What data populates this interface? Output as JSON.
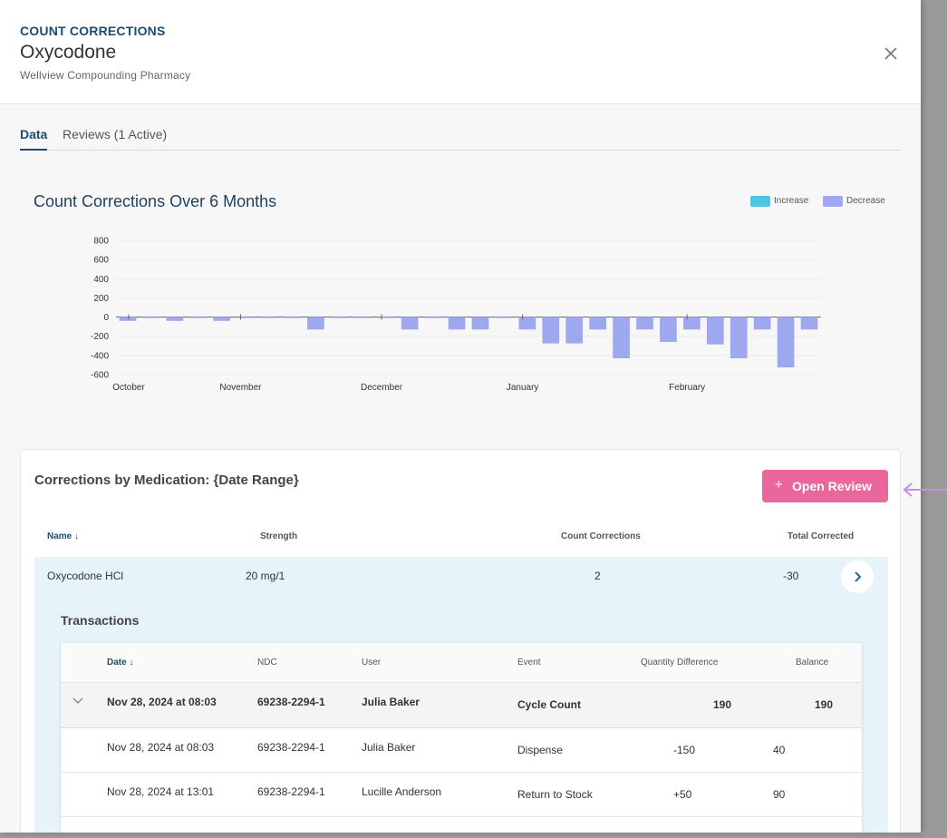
{
  "header": {
    "eyebrow": "COUNT CORRECTIONS",
    "title": "Oxycodone",
    "subtitle": "Wellview Compounding Pharmacy"
  },
  "tabs": [
    {
      "label": "Data",
      "active": true
    },
    {
      "label": "Reviews (1 Active)",
      "active": false
    }
  ],
  "colors": {
    "increase": "#4cc6e3",
    "decrease": "#9ea8ef",
    "accent": "#1e4b6f",
    "button": "#e9679a",
    "arrow": "#c98ee0"
  },
  "chart_data": {
    "type": "bar",
    "title": "Count Corrections Over 6 Months",
    "legend": [
      "Increase",
      "Decrease"
    ],
    "legend_position": "top-right",
    "grid": true,
    "ylim": [
      -600,
      800
    ],
    "yticks": [
      800,
      600,
      400,
      200,
      0,
      -200,
      -400,
      -600
    ],
    "xtick_labels": [
      "October",
      "November",
      "December",
      "January",
      "February"
    ],
    "series": [
      {
        "name": "Decrease",
        "values": [
          -40,
          -10,
          -40,
          -10,
          -40,
          -10,
          -10,
          -10,
          -130,
          -10,
          -10,
          -10,
          -130,
          -10,
          -130,
          -130,
          -10,
          -130,
          -275,
          -275,
          -130,
          -430,
          -130,
          -260,
          -130,
          -285,
          -430,
          -130,
          -525,
          -130
        ]
      }
    ]
  },
  "medications": {
    "title": "Corrections by Medication: {Date Range}",
    "open_review_label": "Open Review",
    "columns": {
      "name": "Name ↓",
      "strength": "Strength",
      "count_corrections": "Count Corrections",
      "total_corrected": "Total Corrected"
    },
    "row": {
      "name": "Oxycodone HCl",
      "strength": "20 mg/1",
      "count_corrections": "2",
      "total_corrected": "-30"
    }
  },
  "transactions": {
    "title": "Transactions",
    "columns": {
      "date": "Date ↓",
      "ndc": "NDC",
      "user": "User",
      "event": "Event",
      "qty": "Quantity Difference",
      "balance": "Balance"
    },
    "group": {
      "date": "Nov 28, 2024 at 08:03",
      "ndc": "69238-2294-1",
      "user": "Julia Baker",
      "event": "Cycle Count",
      "qty": "190",
      "balance": "190"
    },
    "rows": [
      {
        "date": "Nov 28, 2024 at 08:03",
        "ndc": "69238-2294-1",
        "user": "Julia Baker",
        "event": "Dispense",
        "qty": "-150",
        "balance": "40"
      },
      {
        "date": "Nov 28, 2024 at 13:01",
        "ndc": "69238-2294-1",
        "user": "Lucille Anderson",
        "event": "Return to Stock",
        "qty": "+50",
        "balance": "90"
      }
    ]
  }
}
